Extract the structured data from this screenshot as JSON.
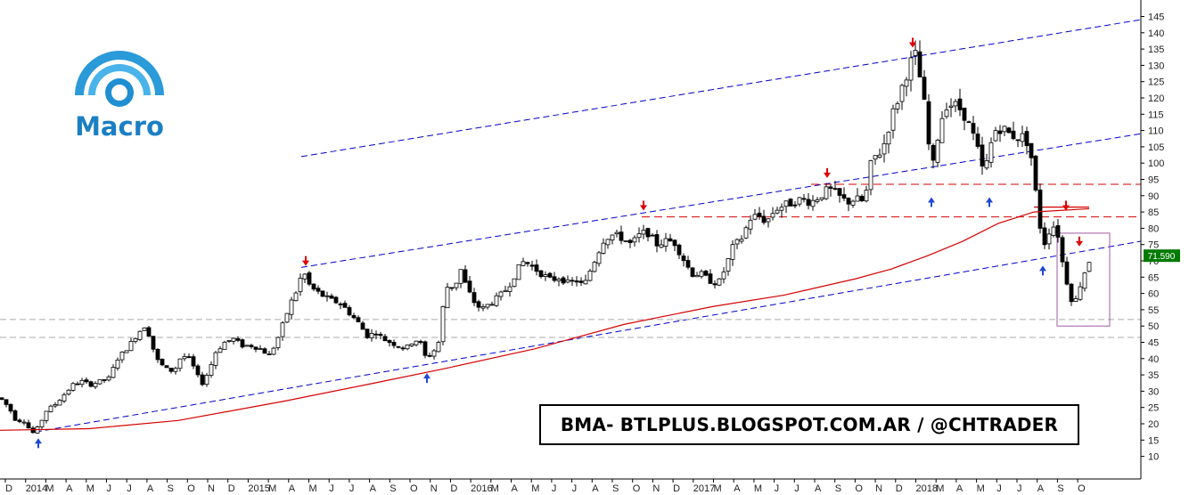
{
  "chart_data": {
    "type": "candlestick",
    "title": "",
    "ticker_banner": "BMA- BTLPLUS.BLOGSPOT.COM.AR / @CHTRADER",
    "logo_text": "Macro",
    "last_price_label": "71.590",
    "last_price": 71.59,
    "ylim": [
      5,
      147
    ],
    "y_ticks": [
      10,
      15,
      20,
      25,
      30,
      35,
      40,
      45,
      50,
      55,
      60,
      65,
      70,
      75,
      80,
      85,
      90,
      95,
      100,
      105,
      110,
      115,
      120,
      125,
      130,
      135,
      140,
      145
    ],
    "x_tick_labels": [
      "D",
      "2014",
      "M",
      "A",
      "M",
      "J",
      "J",
      "A",
      "S",
      "O",
      "N",
      "D",
      "2015",
      "M",
      "A",
      "M",
      "J",
      "J",
      "A",
      "S",
      "O",
      "N",
      "D",
      "2016",
      "M",
      "A",
      "M",
      "J",
      "J",
      "A",
      "S",
      "O",
      "N",
      "D",
      "2017",
      "M",
      "A",
      "M",
      "J",
      "J",
      "A",
      "S",
      "O",
      "N",
      "D",
      "2018",
      "M",
      "A",
      "M",
      "J",
      "J",
      "A",
      "S",
      "O"
    ],
    "grid": false,
    "series": [
      {
        "points": [
          [
            0,
            28
          ],
          [
            10,
            25
          ],
          [
            18,
            21
          ],
          [
            27,
            21
          ],
          [
            36,
            17
          ],
          [
            42,
            18.5
          ],
          [
            52,
            24
          ],
          [
            62,
            26
          ],
          [
            72,
            29
          ],
          [
            82,
            32
          ],
          [
            92,
            33
          ],
          [
            102,
            32
          ],
          [
            112,
            33
          ],
          [
            122,
            34
          ],
          [
            132,
            40
          ],
          [
            145,
            44
          ],
          [
            155,
            48
          ],
          [
            162,
            50
          ],
          [
            168,
            47
          ],
          [
            175,
            40
          ],
          [
            185,
            37
          ],
          [
            195,
            36
          ],
          [
            202,
            40
          ],
          [
            210,
            41
          ],
          [
            218,
            37
          ],
          [
            226,
            32
          ],
          [
            234,
            36
          ],
          [
            242,
            42
          ],
          [
            252,
            45
          ],
          [
            262,
            46
          ],
          [
            272,
            44
          ],
          [
            282,
            44
          ],
          [
            292,
            43
          ],
          [
            302,
            41
          ],
          [
            310,
            45
          ],
          [
            318,
            51
          ],
          [
            326,
            57
          ],
          [
            333,
            61
          ],
          [
            340,
            67
          ],
          [
            348,
            62
          ],
          [
            358,
            60
          ],
          [
            370,
            58
          ],
          [
            382,
            57
          ],
          [
            392,
            54
          ],
          [
            402,
            51
          ],
          [
            412,
            47
          ],
          [
            422,
            48
          ],
          [
            430,
            46
          ],
          [
            438,
            45
          ],
          [
            446,
            44
          ],
          [
            455,
            43
          ],
          [
            462,
            45
          ],
          [
            470,
            46
          ],
          [
            478,
            40
          ],
          [
            486,
            42
          ],
          [
            492,
            45
          ],
          [
            500,
            62
          ],
          [
            510,
            62
          ],
          [
            518,
            68
          ],
          [
            522,
            63
          ],
          [
            530,
            58
          ],
          [
            540,
            55
          ],
          [
            550,
            57
          ],
          [
            560,
            59
          ],
          [
            570,
            62
          ],
          [
            580,
            67
          ],
          [
            588,
            70
          ],
          [
            598,
            68
          ],
          [
            608,
            66
          ],
          [
            618,
            64
          ],
          [
            628,
            65
          ],
          [
            638,
            63
          ],
          [
            648,
            64
          ],
          [
            655,
            62
          ],
          [
            662,
            67
          ],
          [
            670,
            72
          ],
          [
            678,
            77
          ],
          [
            688,
            78
          ],
          [
            698,
            77
          ],
          [
            708,
            75
          ],
          [
            718,
            78
          ],
          [
            726,
            79
          ],
          [
            736,
            75
          ],
          [
            746,
            76
          ],
          [
            756,
            76
          ],
          [
            766,
            71
          ],
          [
            776,
            66
          ],
          [
            786,
            66
          ],
          [
            796,
            64
          ],
          [
            806,
            63
          ],
          [
            814,
            68
          ],
          [
            822,
            74
          ],
          [
            832,
            77
          ],
          [
            842,
            83
          ],
          [
            850,
            84
          ],
          [
            860,
            82
          ],
          [
            870,
            86
          ],
          [
            880,
            87
          ],
          [
            890,
            88
          ],
          [
            900,
            89
          ],
          [
            910,
            88
          ],
          [
            920,
            90
          ],
          [
            930,
            92
          ],
          [
            940,
            90
          ],
          [
            950,
            88
          ],
          [
            960,
            89
          ],
          [
            970,
            88
          ],
          [
            978,
            101
          ],
          [
            990,
            104
          ],
          [
            1000,
            114
          ],
          [
            1008,
            120
          ],
          [
            1015,
            126
          ],
          [
            1022,
            131
          ],
          [
            1027,
            133
          ],
          [
            1031,
            128
          ],
          [
            1036,
            120
          ],
          [
            1040,
            112
          ],
          [
            1045,
            96
          ],
          [
            1052,
            108
          ],
          [
            1060,
            118
          ],
          [
            1070,
            118
          ],
          [
            1080,
            116
          ],
          [
            1090,
            110
          ],
          [
            1098,
            103
          ],
          [
            1104,
            96
          ],
          [
            1110,
            104
          ],
          [
            1116,
            110
          ],
          [
            1124,
            111
          ],
          [
            1132,
            109
          ],
          [
            1140,
            108
          ],
          [
            1150,
            108
          ],
          [
            1156,
            104
          ],
          [
            1160,
            95
          ],
          [
            1165,
            85
          ],
          [
            1170,
            74
          ],
          [
            1175,
            78
          ],
          [
            1180,
            81
          ],
          [
            1186,
            80
          ],
          [
            1190,
            72
          ],
          [
            1195,
            66
          ],
          [
            1200,
            60
          ],
          [
            1205,
            56
          ],
          [
            1210,
            61
          ],
          [
            1216,
            66
          ],
          [
            1222,
            70
          ],
          [
            1226,
            71.59
          ]
        ]
      },
      {
        "name": "moving-average",
        "color": "#d40000",
        "points": [
          [
            0,
            18
          ],
          [
            100,
            18.5
          ],
          [
            200,
            21
          ],
          [
            320,
            27
          ],
          [
            420,
            32.5
          ],
          [
            500,
            37
          ],
          [
            600,
            43
          ],
          [
            700,
            50.5
          ],
          [
            800,
            56
          ],
          [
            880,
            59.5
          ],
          [
            960,
            64.5
          ],
          [
            1000,
            67.5
          ],
          [
            1040,
            71.5
          ],
          [
            1080,
            76
          ],
          [
            1120,
            81.5
          ],
          [
            1160,
            85
          ],
          [
            1222,
            86
          ]
        ]
      }
    ],
    "trendlines": [
      {
        "name": "channel-top",
        "color": "#0000cc",
        "style": "dashed",
        "from": [
          338,
          102
        ],
        "to": [
          1280,
          144
        ]
      },
      {
        "name": "channel-mid",
        "color": "#0000cc",
        "style": "dashed",
        "from": [
          338,
          68
        ],
        "to": [
          1280,
          109
        ]
      },
      {
        "name": "channel-low",
        "color": "#0000cc",
        "style": "dashed",
        "from": [
          40,
          17.5
        ],
        "to": [
          1280,
          76
        ]
      },
      {
        "name": "resistance-94",
        "color": "#d40000",
        "style": "dashed",
        "from": [
          910,
          93.5
        ],
        "to": [
          1280,
          93.5
        ]
      },
      {
        "name": "resistance-83",
        "color": "#d40000",
        "style": "dashed",
        "from": [
          720,
          83.5
        ],
        "to": [
          1280,
          83.5
        ]
      },
      {
        "name": "resistance-86",
        "color": "#d40000",
        "style": "solid",
        "from": [
          1160,
          86.5
        ],
        "to": [
          1222,
          86.5
        ]
      },
      {
        "name": "support-52",
        "color": "#aaaaaa",
        "style": "dashed",
        "from": [
          0,
          52
        ],
        "to": [
          1280,
          52
        ]
      },
      {
        "name": "support-46",
        "color": "#aaaaaa",
        "style": "dashed",
        "from": [
          0,
          46.5
        ],
        "to": [
          1280,
          46.5
        ]
      }
    ],
    "highlight_box": {
      "x0": 1186,
      "x1": 1245,
      "y0": 50,
      "y1": 78.5,
      "color": "#a05aa0"
    },
    "arrows_down": [
      [
        343,
        69
      ],
      [
        722,
        86
      ],
      [
        928,
        96
      ],
      [
        1024,
        136
      ],
      [
        1196,
        86
      ],
      [
        1211,
        75
      ]
    ],
    "arrows_up": [
      [
        43,
        15
      ],
      [
        479,
        35
      ],
      [
        1045,
        89
      ],
      [
        1110,
        89
      ],
      [
        1170,
        68
      ]
    ]
  }
}
